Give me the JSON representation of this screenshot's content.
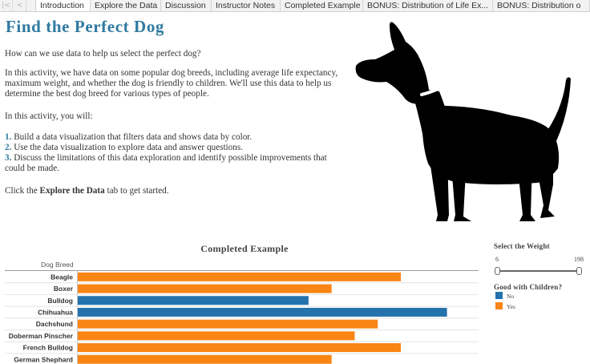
{
  "tabs": [
    {
      "label": "Introduction",
      "active": true
    },
    {
      "label": "Explore the Data",
      "active": false
    },
    {
      "label": "Discussion",
      "active": false
    },
    {
      "label": "Instructor Notes",
      "active": false
    },
    {
      "label": "Completed Example",
      "active": false
    },
    {
      "label": "BONUS: Distribution of Life Ex...",
      "active": false
    },
    {
      "label": "BONUS: Distribution o",
      "active": false
    }
  ],
  "intro": {
    "title": "Find the Perfect Dog",
    "question": "How can we use data to help us select the perfect dog?",
    "description": "In this activity, we have data on some popular dog breeds, including average life expectancy, maximum weight, and whether the dog is friendly to children. We'll use this data to help us determine the best dog breed for various types of people.",
    "you_will": "In this activity, you will:",
    "steps": [
      {
        "num": "1.",
        "text": "Build a data visualization that filters data and shows data by color."
      },
      {
        "num": "2.",
        "text": "Use the data visualization to explore data and answer questions."
      },
      {
        "num": "3.",
        "text": "Discuss the limitations of this data exploration and identify possible improvements that could be made."
      }
    ],
    "cta_before": "Click the ",
    "cta_bold": "Explore the Data",
    "cta_after": " tab to get started."
  },
  "chart_data": {
    "type": "bar",
    "title": "Completed Example",
    "xlabel": "",
    "ylabel": "Dog Breed",
    "categories": [
      "Beagle",
      "Boxer",
      "Bulldog",
      "Chihuahua",
      "Dachshund",
      "Doberman Pinscher",
      "French Bulldog",
      "German Shephard"
    ],
    "values": [
      14,
      11,
      10,
      16,
      13,
      12,
      14,
      11
    ],
    "good_with_children": [
      "Yes",
      "Yes",
      "No",
      "No",
      "Yes",
      "Yes",
      "Yes",
      "Yes"
    ],
    "xlim": [
      0,
      16.5
    ],
    "colors": {
      "No": "#2473ad",
      "Yes": "#f98514"
    }
  },
  "weight_filter": {
    "title": "Select the Weight",
    "min": "6",
    "max": "198",
    "low": 0,
    "high": 1
  },
  "legend": {
    "title": "Good with Children?",
    "items": [
      {
        "label": "No",
        "color": "#2473ad"
      },
      {
        "label": "Yes",
        "color": "#f98514"
      }
    ]
  }
}
